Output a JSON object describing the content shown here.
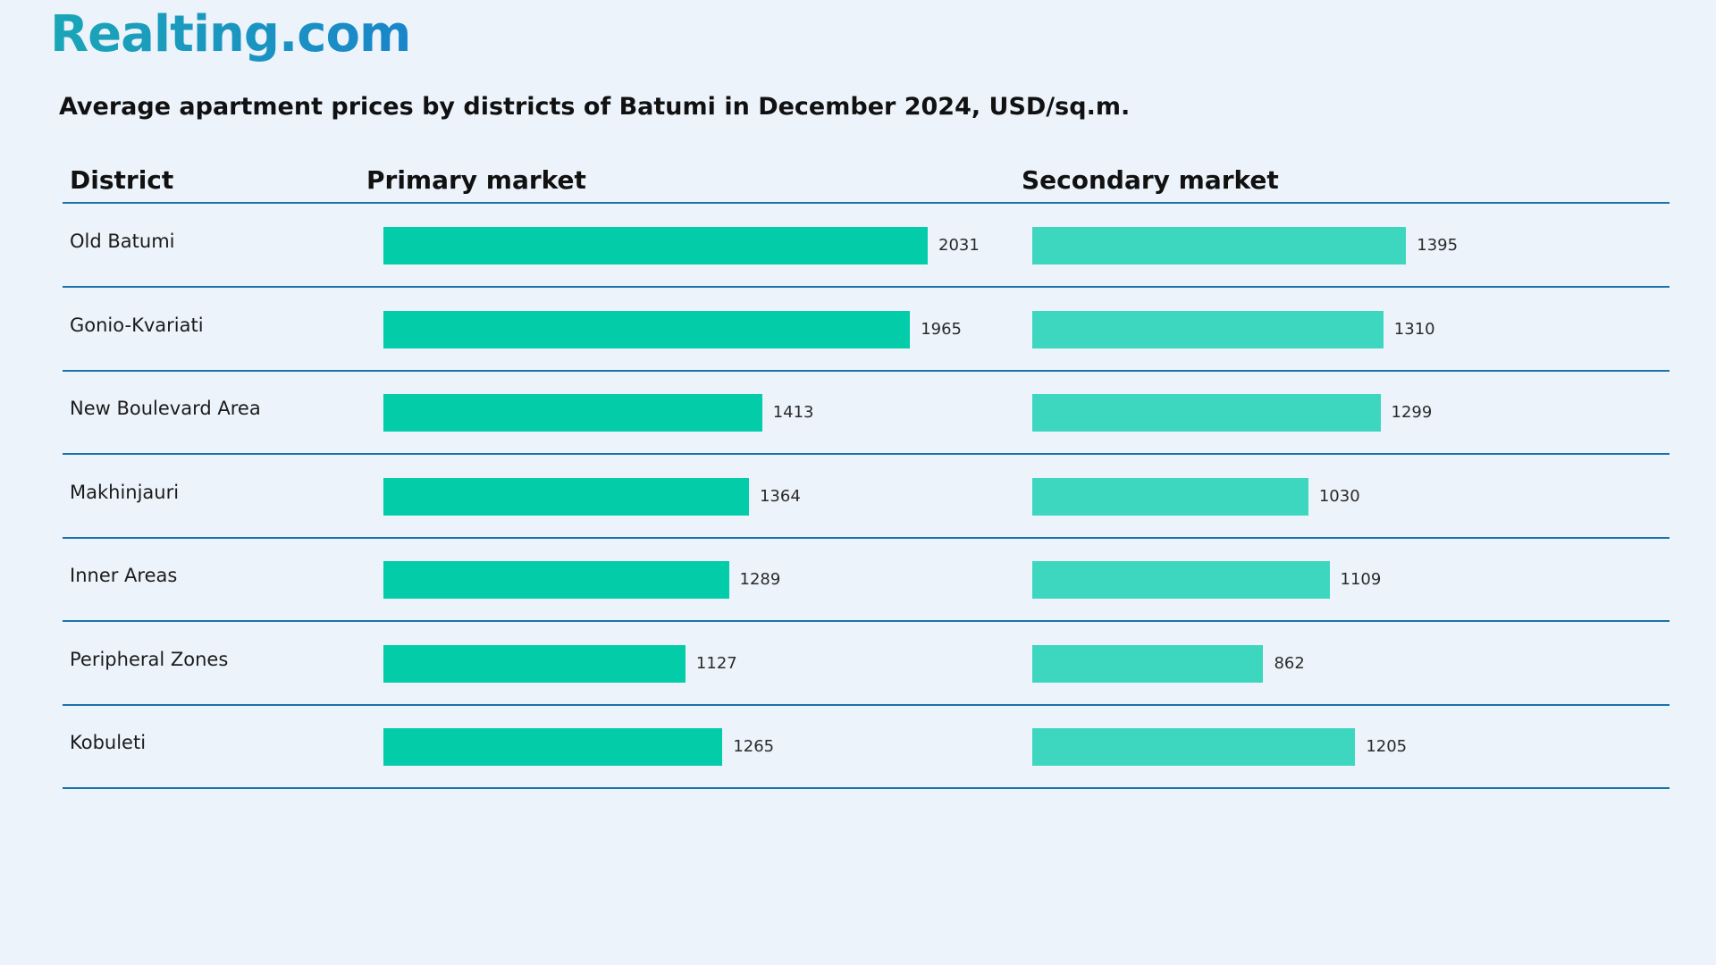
{
  "logo": "Realting.com",
  "chart_data": {
    "type": "bar",
    "title": "Average apartment prices by districts of Batumi in December 2024, USD/sq.m.",
    "columns": {
      "district": "District",
      "primary": "Primary market",
      "secondary": "Secondary market"
    },
    "categories": [
      "Old Batumi",
      "Gonio-Kvariati",
      "New Boulevard Area",
      "Makhinjauri",
      "Inner Areas",
      "Peripheral Zones",
      "Kobuleti"
    ],
    "series": [
      {
        "name": "Primary market",
        "values": [
          2031,
          1965,
          1413,
          1364,
          1289,
          1127,
          1265
        ],
        "color": "#03cca9"
      },
      {
        "name": "Secondary market",
        "values": [
          1395,
          1310,
          1299,
          1030,
          1109,
          862,
          1205
        ],
        "color": "#3dd6bf"
      }
    ],
    "xlim": [
      0,
      2031
    ]
  }
}
